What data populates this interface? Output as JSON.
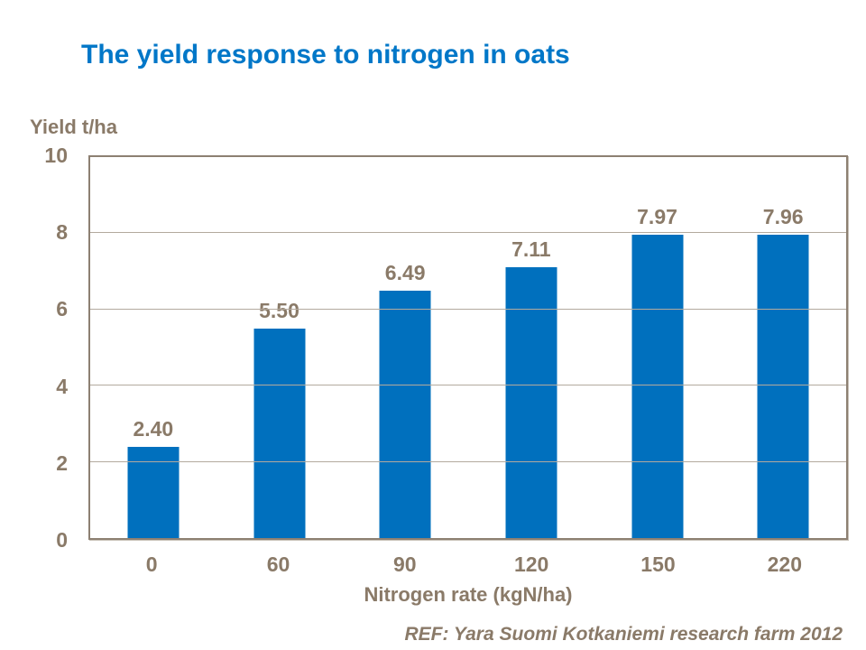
{
  "ref_note": "REF: Yara Suomi Kotkaniemi research farm 2012",
  "chart_data": {
    "type": "bar",
    "title": "The yield response to nitrogen in oats",
    "categories": [
      "0",
      "60",
      "90",
      "120",
      "150",
      "220"
    ],
    "values": [
      2.4,
      5.5,
      6.49,
      7.11,
      7.97,
      7.96
    ],
    "value_labels": [
      "2.40",
      "5.50",
      "6.49",
      "7.11",
      "7.97",
      "7.96"
    ],
    "xlabel": "Nitrogen rate (kgN/ha)",
    "ylabel": "Yield t/ha",
    "ylim": [
      0,
      10
    ],
    "yticks": [
      0,
      2,
      4,
      6,
      8,
      10
    ],
    "grid": true,
    "legend": false,
    "data_labels": true,
    "colors": {
      "bar": "#0070BE",
      "title": "#0077C8",
      "axis_text": "#8A7A68",
      "plot_border": "#8D8072",
      "gridline": "#B3AA9E"
    }
  }
}
